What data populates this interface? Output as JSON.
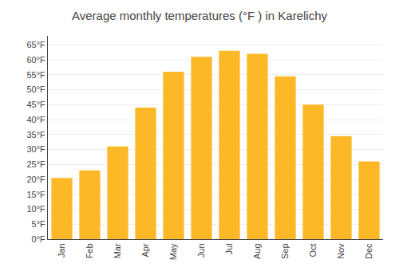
{
  "chart_data": {
    "type": "bar",
    "title": "Average monthly temperatures (°F ) in Karelichy",
    "categories": [
      "Jan",
      "Feb",
      "Mar",
      "Apr",
      "May",
      "Jun",
      "Jul",
      "Aug",
      "Sep",
      "Oct",
      "Nov",
      "Dec"
    ],
    "values": [
      20.5,
      23.0,
      31.0,
      44.0,
      56.0,
      61.0,
      63.0,
      62.0,
      54.5,
      45.0,
      34.5,
      26.0
    ],
    "color": "#FDB827",
    "ylim": [
      0,
      68
    ],
    "yticks": [
      {
        "value": 0,
        "label": "0°F"
      },
      {
        "value": 5,
        "label": "5°F"
      },
      {
        "value": 10,
        "label": "10°F"
      },
      {
        "value": 15,
        "label": "15°F"
      },
      {
        "value": 20,
        "label": "20°F"
      },
      {
        "value": 25,
        "label": "25°F"
      },
      {
        "value": 30,
        "label": "30°F"
      },
      {
        "value": 35,
        "label": "35°F"
      },
      {
        "value": 40,
        "label": "40°F"
      },
      {
        "value": 45,
        "label": "45°F"
      },
      {
        "value": 50,
        "label": "50°F"
      },
      {
        "value": 55,
        "label": "55°F"
      },
      {
        "value": 60,
        "label": "60°F"
      },
      {
        "value": 65,
        "label": "65°F"
      }
    ],
    "grid": true
  }
}
